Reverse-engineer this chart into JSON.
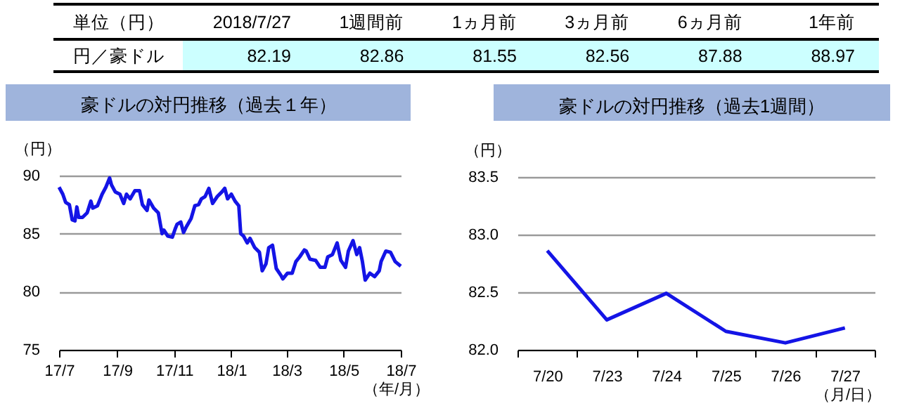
{
  "chart_data": [
    {
      "type": "other",
      "categories": [
        "2018/7/27",
        "1週間前",
        "1ヵ月前",
        "3ヵ月前",
        "6ヵ月前",
        "1年前"
      ],
      "values": [
        82.19,
        82.86,
        81.55,
        82.56,
        87.88,
        88.97
      ],
      "data_labels": true,
      "annotations": [
        "単位（円）",
        "円／豪ドル"
      ]
    },
    {
      "type": "line",
      "title": "豪ドルの対円推移（過去１年）",
      "ylabel": "（円）",
      "xlabel": "（年/月）",
      "color": "#1414e6",
      "grid": "y",
      "xlim": [
        "2017-07",
        "2018-07"
      ],
      "xticks": [
        {
          "value": "2017-07",
          "label": "17/7"
        },
        {
          "value": "2017-09",
          "label": "17/9"
        },
        {
          "value": "2017-11",
          "label": "17/11"
        },
        {
          "value": "2018-01",
          "label": "18/1"
        },
        {
          "value": "2018-03",
          "label": "18/3"
        },
        {
          "value": "2018-05",
          "label": "18/5"
        },
        {
          "value": "2018-07",
          "label": "18/7"
        }
      ],
      "ylim": [
        75,
        90
      ],
      "yticks": [
        75,
        80,
        85,
        90
      ],
      "x": [
        "2017-07-01",
        "2017-07-05",
        "2017-07-08",
        "2017-07-12",
        "2017-07-15",
        "2017-07-18",
        "2017-07-20",
        "2017-07-22",
        "2017-07-26",
        "2017-07-31",
        "2017-08-04",
        "2017-08-06",
        "2017-08-11",
        "2017-08-16",
        "2017-08-20",
        "2017-08-24",
        "2017-08-26",
        "2017-08-30",
        "2017-09-04",
        "2017-09-08",
        "2017-09-11",
        "2017-09-15",
        "2017-09-20",
        "2017-09-25",
        "2017-09-28",
        "2017-10-03",
        "2017-10-05",
        "2017-10-10",
        "2017-10-15",
        "2017-10-19",
        "2017-10-21",
        "2017-10-25",
        "2017-10-30",
        "2017-11-02",
        "2017-11-04",
        "2017-11-08",
        "2017-11-11",
        "2017-11-14",
        "2017-11-19",
        "2017-11-23",
        "2017-11-27",
        "2017-11-30",
        "2017-12-04",
        "2017-12-08",
        "2017-12-12",
        "2017-12-17",
        "2017-12-22",
        "2017-12-25",
        "2017-12-28",
        "2018-01-01",
        "2018-01-05",
        "2018-01-09",
        "2018-01-11",
        "2018-01-14",
        "2018-01-18",
        "2018-01-21",
        "2018-01-26",
        "2018-01-31",
        "2018-02-03",
        "2018-02-07",
        "2018-02-10",
        "2018-02-14",
        "2018-02-18",
        "2018-02-23",
        "2018-02-25",
        "2018-03-02",
        "2018-03-07",
        "2018-03-11",
        "2018-03-15",
        "2018-03-20",
        "2018-03-22",
        "2018-03-26",
        "2018-04-01",
        "2018-04-06",
        "2018-04-11",
        "2018-04-14",
        "2018-04-19",
        "2018-04-24",
        "2018-04-28",
        "2018-05-03",
        "2018-05-06",
        "2018-05-11",
        "2018-05-15",
        "2018-05-18",
        "2018-05-21",
        "2018-05-24",
        "2018-05-29",
        "2018-06-03",
        "2018-06-08",
        "2018-06-10",
        "2018-06-15",
        "2018-06-20",
        "2018-06-25",
        "2018-07-01"
      ],
      "values": [
        89.0,
        88.4,
        87.7,
        87.5,
        86.2,
        86.1,
        87.3,
        86.4,
        86.4,
        86.8,
        87.8,
        87.2,
        87.4,
        88.4,
        89.0,
        89.8,
        89.2,
        88.6,
        88.4,
        87.6,
        88.4,
        88.0,
        88.7,
        88.7,
        87.5,
        87.0,
        87.9,
        87.2,
        86.8,
        85.0,
        85.3,
        84.8,
        84.7,
        85.4,
        85.8,
        86.0,
        85.1,
        85.6,
        86.3,
        87.4,
        87.5,
        88.0,
        88.2,
        88.9,
        87.6,
        88.2,
        88.6,
        88.9,
        88.0,
        88.4,
        87.8,
        87.4,
        85.0,
        84.8,
        84.2,
        84.6,
        83.8,
        83.4,
        81.8,
        82.4,
        83.8,
        84.0,
        82.0,
        81.4,
        81.1,
        81.6,
        81.6,
        82.6,
        83.0,
        83.6,
        83.5,
        82.8,
        82.7,
        82.1,
        82.1,
        83.0,
        83.2,
        84.2,
        82.7,
        82.1,
        83.5,
        84.4,
        83.2,
        83.8,
        82.6,
        81.0,
        81.6,
        81.3,
        81.8,
        82.6,
        83.5,
        83.4,
        82.6,
        82.2
      ]
    },
    {
      "type": "line",
      "title": "豪ドルの対円推移（過去1週間）",
      "ylabel": "（円）",
      "xlabel": "（月/日）",
      "color": "#1414e6",
      "grid": "y",
      "categories": [
        "7/20",
        "7/23",
        "7/24",
        "7/25",
        "7/26",
        "7/27"
      ],
      "values": [
        82.86,
        82.26,
        82.49,
        82.16,
        82.06,
        82.19
      ],
      "ylim": [
        82.0,
        83.5
      ],
      "yticks": [
        {
          "value": 82.0,
          "label": "82.0"
        },
        82.5,
        {
          "value": 83.0,
          "label": "83.0"
        },
        83.5
      ]
    }
  ]
}
